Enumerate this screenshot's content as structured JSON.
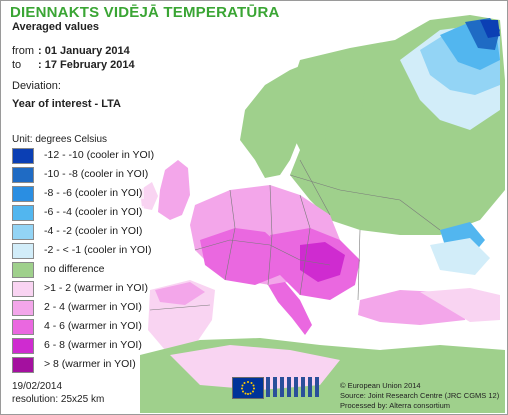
{
  "title": "DIENNAKTS VIDĒJĀ TEMPERATŪRA",
  "subtitle": "Averaged values",
  "period": {
    "from_label": "from",
    "from_value": ": 01 January 2014",
    "to_label": "to",
    "to_value": ": 17 February 2014"
  },
  "deviation_label": "Deviation:",
  "comparison_label": "Year of interest - LTA",
  "unit_label": "Unit: degrees Celsius",
  "legend": [
    {
      "label": "-12 - -10 (cooler in YOI)",
      "color": "#0b3fb4"
    },
    {
      "label": "-10 - -8 (cooler in YOI)",
      "color": "#1f6bc4"
    },
    {
      "label": "-8 - -6 (cooler in YOI)",
      "color": "#2a8ee2"
    },
    {
      "label": "-6 - -4 (cooler in YOI)",
      "color": "#52b6ef"
    },
    {
      "label": "-4 - -2 (cooler in YOI)",
      "color": "#93d4f5"
    },
    {
      "label": "-2 - < -1 (cooler in YOI)",
      "color": "#d2edf9"
    },
    {
      "label": "no difference",
      "color": "#9fd08c"
    },
    {
      "label": ">1 - 2 (warmer in YOI)",
      "color": "#f9d4f2"
    },
    {
      "label": "2 - 4 (warmer in YOI)",
      "color": "#f3a6ea"
    },
    {
      "label": "4 - 6 (warmer in YOI)",
      "color": "#ea68e0"
    },
    {
      "label": "6 - 8 (warmer in YOI)",
      "color": "#cf2bd0"
    },
    {
      "label": "> 8 (warmer in YOI)",
      "color": "#a4109f"
    }
  ],
  "date_label": "19/02/2014",
  "resolution_label": "resolution: 25x25 km",
  "credits": [
    "© European Union 2014",
    "Source: Joint Research Centre (JRC CGMS 12)",
    "Processed by: Alterra consortium"
  ],
  "colors": {
    "title": "#3aa534",
    "sea": "#ffffff",
    "border": "#7a7a7a"
  }
}
